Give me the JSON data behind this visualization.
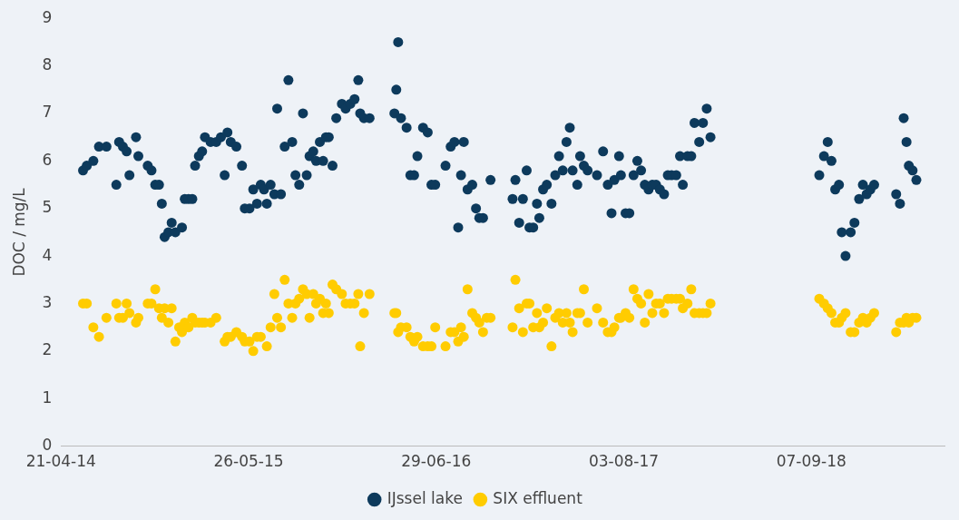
{
  "chart_data": {
    "type": "scatter",
    "ylabel": "DOC / mg/L",
    "legend": "bottom",
    "marker": "circle",
    "xlim": [
      "2014-04-21",
      "2019-06-18"
    ],
    "xticks": [
      {
        "value": "2014-04-21",
        "label": "21-04-14"
      },
      {
        "value": "2015-05-26",
        "label": "26-05-15"
      },
      {
        "value": "2016-06-29",
        "label": "29-06-16"
      },
      {
        "value": "2017-08-03",
        "label": "03-08-17"
      },
      {
        "value": "2018-09-07",
        "label": "07-09-18"
      }
    ],
    "ylim": [
      0,
      9
    ],
    "yticks": [
      0,
      1,
      2,
      3,
      4,
      5,
      6,
      7,
      8,
      9
    ],
    "x": [
      "2014-06-07",
      "2014-06-15",
      "2014-06-29",
      "2014-07-11",
      "2014-07-27",
      "2014-08-17",
      "2014-08-23",
      "2014-08-31",
      "2014-09-08",
      "2014-09-14",
      "2014-09-28",
      "2014-10-03",
      "2014-10-23",
      "2014-10-31",
      "2014-11-08",
      "2014-11-16",
      "2014-11-22",
      "2014-11-28",
      "2014-12-06",
      "2014-12-13",
      "2014-12-21",
      "2014-12-29",
      "2015-01-04",
      "2015-01-10",
      "2015-01-18",
      "2015-01-26",
      "2015-02-01",
      "2015-02-09",
      "2015-02-16",
      "2015-02-22",
      "2015-03-06",
      "2015-03-18",
      "2015-03-28",
      "2015-04-05",
      "2015-04-11",
      "2015-04-18",
      "2015-04-30",
      "2015-05-12",
      "2015-05-18",
      "2015-05-28",
      "2015-06-05",
      "2015-06-13",
      "2015-06-21",
      "2015-06-28",
      "2015-07-04",
      "2015-07-12",
      "2015-07-20",
      "2015-07-26",
      "2015-08-03",
      "2015-08-11",
      "2015-08-19",
      "2015-08-27",
      "2015-09-03",
      "2015-09-11",
      "2015-09-19",
      "2015-09-27",
      "2015-10-03",
      "2015-10-11",
      "2015-10-17",
      "2015-10-25",
      "2015-11-01",
      "2015-11-07",
      "2015-11-13",
      "2015-11-21",
      "2015-11-29",
      "2015-12-11",
      "2015-12-19",
      "2015-12-29",
      "2016-01-07",
      "2016-01-15",
      "2016-01-19",
      "2016-01-27",
      "2016-02-08",
      "2016-04-01",
      "2016-04-05",
      "2016-04-09",
      "2016-04-15",
      "2016-04-27",
      "2016-05-05",
      "2016-05-13",
      "2016-05-20",
      "2016-06-01",
      "2016-06-11",
      "2016-06-19",
      "2016-06-27",
      "2016-07-19",
      "2016-07-30",
      "2016-08-07",
      "2016-08-15",
      "2016-08-21",
      "2016-08-27",
      "2016-09-04",
      "2016-09-14",
      "2016-09-22",
      "2016-09-29",
      "2016-10-07",
      "2016-10-15",
      "2016-10-23",
      "2016-12-09",
      "2016-12-15",
      "2016-12-23",
      "2016-12-31",
      "2017-01-08",
      "2017-01-14",
      "2017-01-22",
      "2017-01-30",
      "2017-02-04",
      "2017-02-12",
      "2017-02-20",
      "2017-03-02",
      "2017-03-10",
      "2017-03-18",
      "2017-03-26",
      "2017-04-03",
      "2017-04-10",
      "2017-04-16",
      "2017-04-26",
      "2017-05-02",
      "2017-05-10",
      "2017-05-18",
      "2017-06-07",
      "2017-06-20",
      "2017-06-30",
      "2017-07-08",
      "2017-07-14",
      "2017-07-24",
      "2017-07-28",
      "2017-08-07",
      "2017-08-15",
      "2017-08-24",
      "2017-09-01",
      "2017-09-09",
      "2017-09-17",
      "2017-09-25",
      "2017-10-03",
      "2017-10-11",
      "2017-10-19",
      "2017-10-28",
      "2017-11-05",
      "2017-11-13",
      "2017-11-23",
      "2017-12-01",
      "2017-12-07",
      "2017-12-17",
      "2017-12-25",
      "2018-01-01",
      "2018-01-11",
      "2018-01-19",
      "2018-01-27",
      "2018-02-04",
      "2018-09-24",
      "2018-10-04",
      "2018-10-12",
      "2018-10-20",
      "2018-10-28",
      "2018-11-05",
      "2018-11-11",
      "2018-11-19",
      "2018-11-30",
      "2018-12-08",
      "2018-12-18",
      "2018-12-26",
      "2019-01-03",
      "2019-01-11",
      "2019-01-19",
      "2019-03-07",
      "2019-03-15",
      "2019-03-23",
      "2019-03-29",
      "2019-04-03",
      "2019-04-11",
      "2019-04-19"
    ],
    "series": [
      {
        "name": "IJssel lake",
        "color": "#0d3a5c",
        "values": [
          5.8,
          5.9,
          6.0,
          6.3,
          6.3,
          5.5,
          6.4,
          6.3,
          6.2,
          5.7,
          6.5,
          6.1,
          5.9,
          5.8,
          5.5,
          5.5,
          5.1,
          4.4,
          4.5,
          4.7,
          4.5,
          null,
          4.6,
          5.2,
          5.2,
          5.2,
          5.9,
          6.1,
          6.2,
          6.5,
          6.4,
          6.4,
          6.5,
          5.7,
          6.6,
          6.4,
          6.3,
          5.9,
          5.0,
          5.0,
          5.4,
          5.1,
          5.5,
          5.4,
          5.1,
          5.5,
          5.3,
          7.1,
          5.3,
          6.3,
          7.7,
          6.4,
          5.7,
          5.5,
          7.0,
          5.7,
          6.1,
          6.2,
          6.0,
          6.4,
          6.0,
          6.5,
          6.5,
          5.9,
          6.9,
          7.2,
          7.1,
          7.2,
          7.3,
          7.7,
          7.0,
          6.9,
          6.9,
          7.0,
          7.5,
          8.5,
          6.9,
          6.7,
          5.7,
          5.7,
          6.1,
          6.7,
          6.6,
          5.5,
          5.5,
          5.9,
          6.3,
          6.4,
          4.6,
          5.7,
          6.4,
          5.4,
          5.5,
          5.0,
          4.8,
          4.8,
          null,
          5.6,
          5.2,
          5.6,
          4.7,
          5.2,
          5.8,
          4.6,
          4.6,
          5.1,
          4.8,
          5.4,
          5.5,
          5.1,
          5.7,
          6.1,
          5.8,
          6.4,
          6.7,
          5.8,
          5.5,
          6.1,
          5.9,
          5.8,
          5.7,
          6.2,
          5.5,
          4.9,
          5.6,
          6.1,
          5.7,
          4.9,
          4.9,
          5.7,
          6.0,
          5.8,
          5.5,
          5.4,
          5.5,
          5.5,
          5.4,
          5.3,
          5.7,
          5.7,
          5.7,
          6.1,
          5.5,
          6.1,
          6.1,
          6.8,
          6.4,
          6.8,
          7.1,
          6.5,
          5.7,
          6.1,
          6.4,
          6.0,
          5.4,
          5.5,
          4.5,
          4.0,
          4.5,
          4.7,
          5.2,
          5.5,
          5.3,
          5.4,
          5.5,
          5.3,
          5.1,
          6.9,
          6.4,
          5.9,
          5.8,
          5.6
        ]
      },
      {
        "name": "SIX effluent",
        "color": "#ffcc00",
        "values": [
          3.0,
          3.0,
          2.5,
          2.3,
          2.7,
          3.0,
          2.7,
          2.7,
          3.0,
          2.8,
          2.6,
          2.7,
          3.0,
          3.0,
          3.3,
          2.9,
          2.7,
          2.9,
          2.6,
          2.9,
          2.2,
          2.5,
          2.4,
          2.6,
          2.5,
          2.7,
          2.6,
          2.6,
          2.6,
          2.6,
          2.6,
          2.7,
          null,
          2.2,
          2.3,
          2.3,
          2.4,
          2.3,
          2.2,
          2.2,
          2.0,
          2.3,
          2.3,
          null,
          2.1,
          2.5,
          3.2,
          2.7,
          2.5,
          3.5,
          3.0,
          2.7,
          3.0,
          3.1,
          3.3,
          3.2,
          2.7,
          3.2,
          3.0,
          3.1,
          2.8,
          3.0,
          2.8,
          3.4,
          3.3,
          3.2,
          3.0,
          3.0,
          3.0,
          3.2,
          2.1,
          2.8,
          3.2,
          2.8,
          2.8,
          2.4,
          2.5,
          2.5,
          2.3,
          2.2,
          2.3,
          2.1,
          2.1,
          2.1,
          2.5,
          2.1,
          2.4,
          2.4,
          2.2,
          2.5,
          2.3,
          3.3,
          2.8,
          2.7,
          2.6,
          2.4,
          2.7,
          2.7,
          2.5,
          3.5,
          2.9,
          2.4,
          3.0,
          3.0,
          2.5,
          2.8,
          2.5,
          2.6,
          2.9,
          2.1,
          2.7,
          2.8,
          2.6,
          2.8,
          2.6,
          2.4,
          2.8,
          2.8,
          3.3,
          2.6,
          2.9,
          2.6,
          2.4,
          2.4,
          2.5,
          2.7,
          2.7,
          2.8,
          2.7,
          3.3,
          3.1,
          3.0,
          2.6,
          3.2,
          2.8,
          3.0,
          3.0,
          2.8,
          3.1,
          3.1,
          3.1,
          3.1,
          2.9,
          3.0,
          3.3,
          2.8,
          2.8,
          2.8,
          2.8,
          3.0,
          3.1,
          3.0,
          2.9,
          2.8,
          2.6,
          2.6,
          2.7,
          2.8,
          2.4,
          2.4,
          2.6,
          2.7,
          2.6,
          2.7,
          2.8,
          2.4,
          2.6,
          2.6,
          2.7,
          2.6,
          2.7,
          2.7
        ]
      }
    ]
  }
}
